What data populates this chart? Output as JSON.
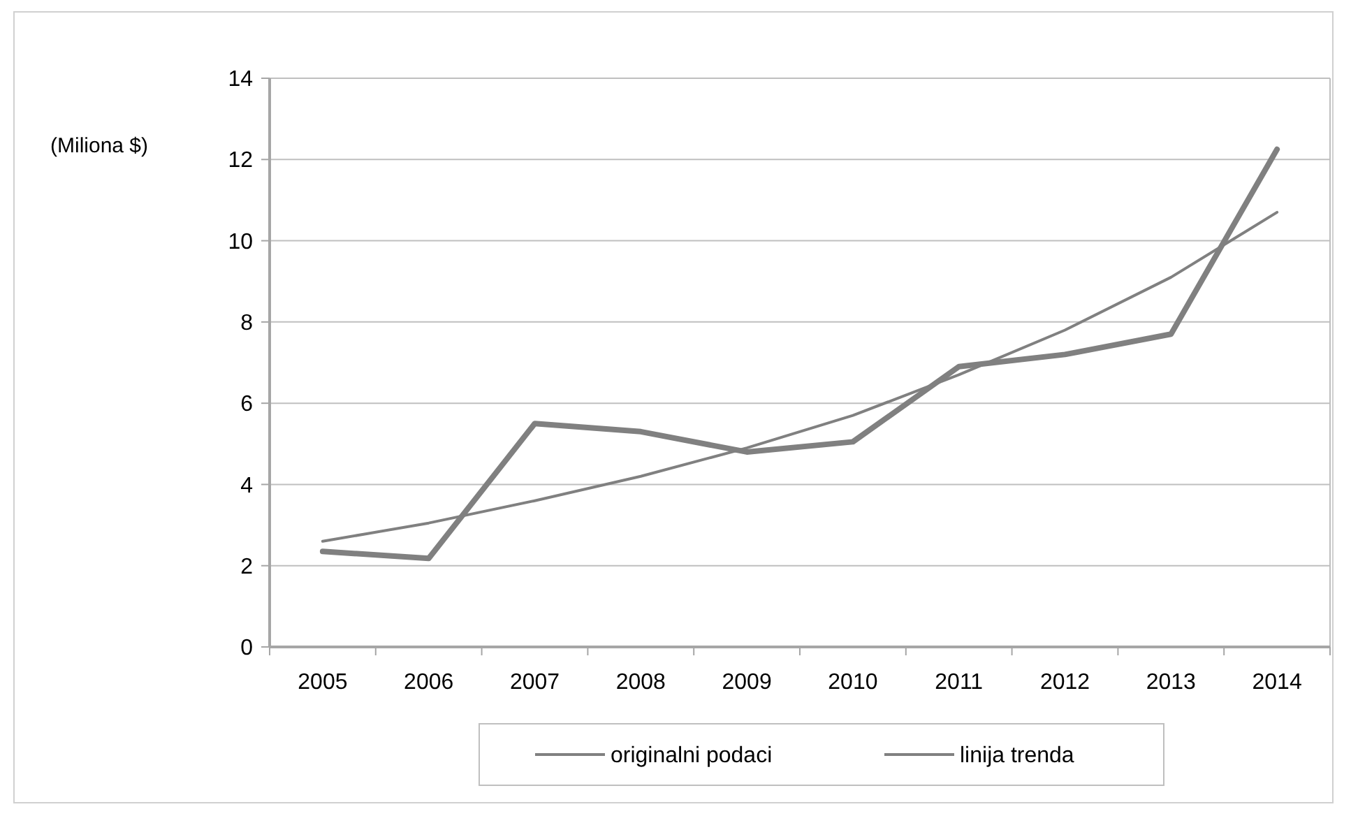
{
  "chart_data": {
    "type": "line",
    "ylabel": "(Miliona $)",
    "categories": [
      "2005",
      "2006",
      "2007",
      "2008",
      "2009",
      "2010",
      "2011",
      "2012",
      "2013",
      "2014"
    ],
    "series": [
      {
        "name": "originalni podaci",
        "color": "#808080",
        "values": [
          2.35,
          2.18,
          5.5,
          5.3,
          4.8,
          5.05,
          6.9,
          7.2,
          7.7,
          12.25
        ]
      },
      {
        "name": "linija trenda",
        "color": "#808080",
        "values": [
          2.6,
          3.05,
          3.6,
          4.2,
          4.9,
          5.7,
          6.7,
          7.8,
          9.1,
          10.7
        ]
      }
    ],
    "ylim": [
      0,
      14
    ],
    "yticks": [
      0,
      2,
      4,
      6,
      8,
      10,
      12,
      14
    ],
    "grid": "y",
    "legend": "bottom",
    "marker": "none",
    "line_style": "solid"
  }
}
